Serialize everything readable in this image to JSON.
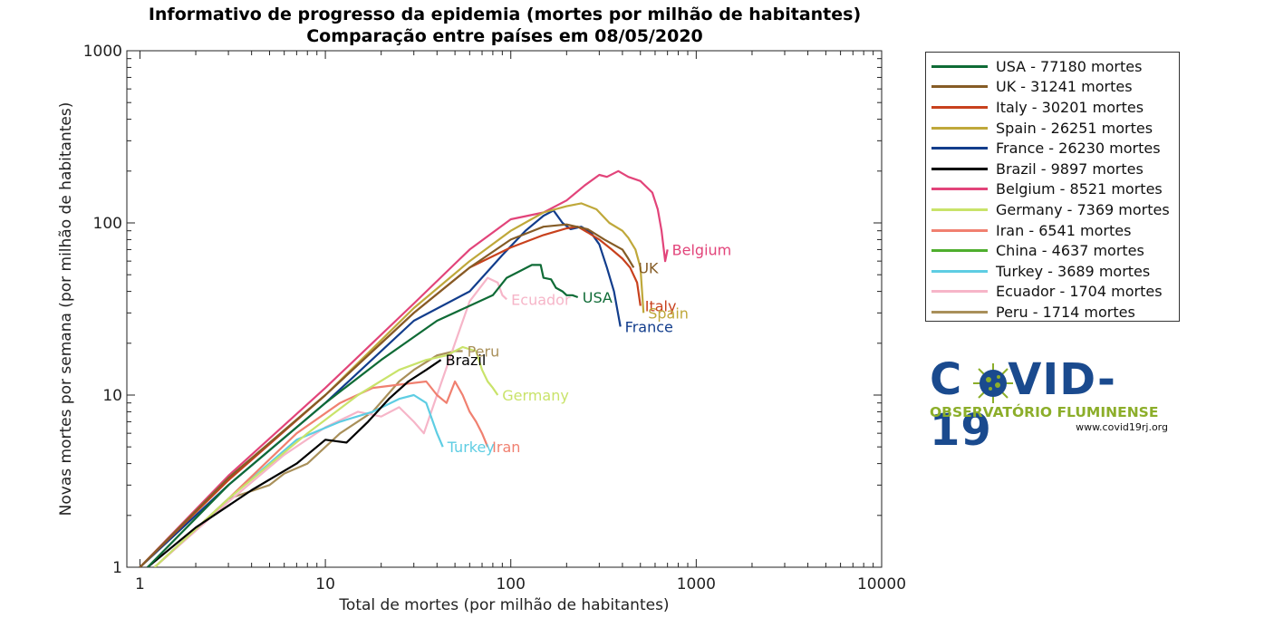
{
  "title_line1": "Informativo de progresso da epidemia (mortes por milhão de habitantes)",
  "title_line2": "Comparação entre países em 08/05/2020",
  "logo": {
    "word_left": "C",
    "word_right": "VID-19",
    "subtitle": "OBSERVATÓRIO FLUMINENSE",
    "url": "www.covid19rj.org",
    "primary_color": "#1a4a8e",
    "accent_color": "#8cae2a"
  },
  "chart_data": {
    "type": "line",
    "title": "Informativo de progresso da epidemia (mortes por milhão de habitantes) — Comparação entre países em 08/05/2020",
    "xlabel": "Total de mortes (por milhão de habitantes)",
    "ylabel": "Novas mortes por semana (por milhão de habitantes)",
    "xscale": "log",
    "yscale": "log",
    "xlim": [
      0.85,
      10000
    ],
    "ylim": [
      1,
      1000
    ],
    "xticks": [
      "1",
      "10",
      "100",
      "1000",
      "10000"
    ],
    "xtick_values": [
      1,
      10,
      100,
      1000,
      10000
    ],
    "yticks": [
      "1",
      "10",
      "100",
      "1000"
    ],
    "ytick_values": [
      1,
      10,
      100,
      1000
    ],
    "legend_position": "right",
    "series": [
      {
        "name": "USA",
        "legend": "USA - 77180 mortes",
        "label": "USA",
        "color": "#0f6b36",
        "points": [
          [
            1.1,
            1
          ],
          [
            3,
            3
          ],
          [
            10,
            9
          ],
          [
            20,
            16
          ],
          [
            40,
            27
          ],
          [
            60,
            33
          ],
          [
            80,
            38
          ],
          [
            95,
            48
          ],
          [
            110,
            52
          ],
          [
            130,
            57
          ],
          [
            145,
            57
          ],
          [
            150,
            48
          ],
          [
            165,
            47
          ],
          [
            175,
            42
          ],
          [
            190,
            40
          ],
          [
            200,
            38
          ],
          [
            215,
            38
          ],
          [
            230,
            37
          ]
        ]
      },
      {
        "name": "UK",
        "legend": "UK - 31241 mortes",
        "label": "UK",
        "color": "#855c26",
        "points": [
          [
            1,
            1
          ],
          [
            3,
            3.3
          ],
          [
            10,
            10
          ],
          [
            30,
            30
          ],
          [
            60,
            55
          ],
          [
            100,
            80
          ],
          [
            150,
            95
          ],
          [
            200,
            98
          ],
          [
            260,
            92
          ],
          [
            320,
            80
          ],
          [
            400,
            70
          ],
          [
            430,
            62
          ],
          [
            460,
            55
          ]
        ]
      },
      {
        "name": "Italy",
        "legend": "Italy - 30201 mortes",
        "label": "Italy",
        "color": "#c8411d",
        "points": [
          [
            1,
            1
          ],
          [
            3,
            3.2
          ],
          [
            10,
            10
          ],
          [
            30,
            30
          ],
          [
            60,
            55
          ],
          [
            100,
            72
          ],
          [
            150,
            85
          ],
          [
            200,
            93
          ],
          [
            230,
            95
          ],
          [
            260,
            88
          ],
          [
            300,
            80
          ],
          [
            350,
            70
          ],
          [
            400,
            62
          ],
          [
            440,
            55
          ],
          [
            480,
            45
          ],
          [
            500,
            33
          ]
        ]
      },
      {
        "name": "Spain",
        "legend": "Spain - 26251 mortes",
        "label": "Spain",
        "color": "#bfa83a",
        "points": [
          [
            1,
            1
          ],
          [
            3,
            3.3
          ],
          [
            10,
            10
          ],
          [
            30,
            32
          ],
          [
            60,
            60
          ],
          [
            100,
            90
          ],
          [
            150,
            115
          ],
          [
            200,
            125
          ],
          [
            240,
            130
          ],
          [
            290,
            120
          ],
          [
            340,
            100
          ],
          [
            400,
            90
          ],
          [
            430,
            82
          ],
          [
            470,
            70
          ],
          [
            500,
            55
          ],
          [
            520,
            30
          ]
        ]
      },
      {
        "name": "France",
        "legend": "France - 26230 mortes",
        "label": "France",
        "color": "#123d8c",
        "points": [
          [
            1,
            1
          ],
          [
            3,
            3
          ],
          [
            10,
            9
          ],
          [
            30,
            27
          ],
          [
            60,
            40
          ],
          [
            90,
            65
          ],
          [
            120,
            90
          ],
          [
            150,
            110
          ],
          [
            170,
            118
          ],
          [
            190,
            100
          ],
          [
            210,
            92
          ],
          [
            240,
            95
          ],
          [
            270,
            88
          ],
          [
            300,
            75
          ],
          [
            330,
            55
          ],
          [
            360,
            40
          ],
          [
            390,
            25
          ]
        ]
      },
      {
        "name": "Brazil",
        "legend": "Brazil - 9897 mortes",
        "label": "Brazil",
        "color": "#000000",
        "points": [
          [
            1.1,
            1
          ],
          [
            2,
            1.7
          ],
          [
            4,
            2.8
          ],
          [
            7,
            4
          ],
          [
            10,
            5.5
          ],
          [
            13,
            5.3
          ],
          [
            17,
            7
          ],
          [
            22,
            9.5
          ],
          [
            28,
            12
          ],
          [
            35,
            14
          ],
          [
            42,
            16
          ]
        ]
      },
      {
        "name": "Belgium",
        "legend": "Belgium - 8521 mortes",
        "label": "Belgium",
        "color": "#e2447a",
        "points": [
          [
            1,
            1
          ],
          [
            3,
            3.4
          ],
          [
            10,
            11
          ],
          [
            30,
            34
          ],
          [
            60,
            70
          ],
          [
            100,
            105
          ],
          [
            150,
            115
          ],
          [
            200,
            135
          ],
          [
            250,
            165
          ],
          [
            300,
            190
          ],
          [
            330,
            185
          ],
          [
            380,
            200
          ],
          [
            430,
            185
          ],
          [
            500,
            175
          ],
          [
            580,
            150
          ],
          [
            620,
            120
          ],
          [
            650,
            90
          ],
          [
            680,
            60
          ],
          [
            700,
            70
          ]
        ]
      },
      {
        "name": "Germany",
        "legend": "Germany - 7369 mortes",
        "label": "Germany",
        "color": "#c9e36a",
        "points": [
          [
            1.2,
            1
          ],
          [
            3,
            2.5
          ],
          [
            8,
            6
          ],
          [
            15,
            10
          ],
          [
            25,
            14
          ],
          [
            35,
            16
          ],
          [
            45,
            17
          ],
          [
            55,
            19
          ],
          [
            65,
            18
          ],
          [
            70,
            14
          ],
          [
            75,
            12
          ],
          [
            80,
            11
          ],
          [
            85,
            10
          ]
        ]
      },
      {
        "name": "Iran",
        "legend": "Iran - 6541 mortes",
        "label": "Iran",
        "color": "#f08070",
        "points": [
          [
            1.2,
            1
          ],
          [
            3,
            2.5
          ],
          [
            7,
            6
          ],
          [
            12,
            9
          ],
          [
            18,
            11
          ],
          [
            25,
            11.5
          ],
          [
            35,
            12
          ],
          [
            40,
            10
          ],
          [
            45,
            9
          ],
          [
            50,
            12
          ],
          [
            55,
            10
          ],
          [
            60,
            8
          ],
          [
            65,
            7
          ],
          [
            70,
            6
          ],
          [
            75,
            5
          ]
        ]
      },
      {
        "name": "China",
        "legend": "China - 4637 mortes",
        "label": "",
        "color": "#4fae2e",
        "points": [
          [
            1,
            1
          ],
          [
            2,
            2
          ],
          [
            3,
            3
          ]
        ]
      },
      {
        "name": "Turkey",
        "legend": "Turkey - 3689 mortes",
        "label": "Turkey",
        "color": "#5ecde3",
        "points": [
          [
            1.2,
            1
          ],
          [
            3,
            2.5
          ],
          [
            7,
            5.5
          ],
          [
            12,
            7
          ],
          [
            18,
            8
          ],
          [
            25,
            9.5
          ],
          [
            30,
            10
          ],
          [
            35,
            9
          ],
          [
            40,
            6
          ],
          [
            43,
            5
          ]
        ]
      },
      {
        "name": "Ecuador",
        "legend": "Ecuador - 1704 mortes",
        "label": "Ecuador",
        "color": "#f6b5c8",
        "points": [
          [
            1.2,
            1
          ],
          [
            3,
            2.4
          ],
          [
            6,
            4.5
          ],
          [
            10,
            6.5
          ],
          [
            15,
            8
          ],
          [
            20,
            7.5
          ],
          [
            25,
            8.5
          ],
          [
            30,
            7
          ],
          [
            34,
            6
          ],
          [
            40,
            10
          ],
          [
            50,
            20
          ],
          [
            60,
            35
          ],
          [
            75,
            48
          ],
          [
            85,
            45
          ],
          [
            90,
            38
          ],
          [
            95,
            36
          ]
        ]
      },
      {
        "name": "Peru",
        "legend": "Peru - 1714 mortes",
        "label": "Peru",
        "color": "#a9905a",
        "points": [
          [
            1.2,
            1
          ],
          [
            3,
            2.5
          ],
          [
            5,
            3
          ],
          [
            6,
            3.5
          ],
          [
            8,
            4
          ],
          [
            12,
            6
          ],
          [
            18,
            8
          ],
          [
            25,
            12
          ],
          [
            30,
            14
          ],
          [
            40,
            17
          ],
          [
            50,
            18
          ],
          [
            55,
            18
          ]
        ]
      }
    ]
  }
}
